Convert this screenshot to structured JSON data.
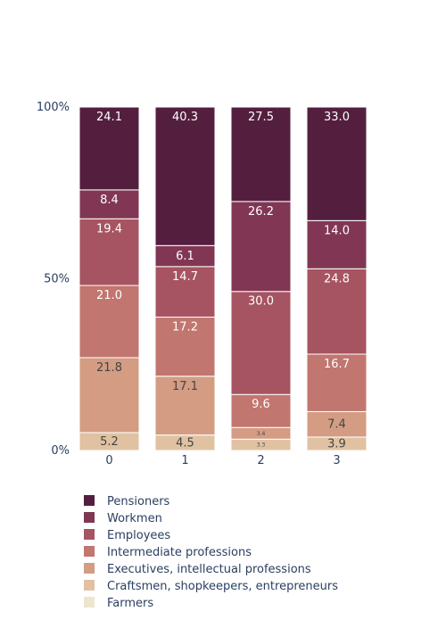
{
  "chart_data": {
    "type": "bar",
    "stacked": true,
    "normalized": true,
    "categories": [
      "0",
      "1",
      "2",
      "3"
    ],
    "y_ticks": [
      "0%",
      "50%",
      "100%"
    ],
    "ylim": [
      0,
      100
    ],
    "grid": false,
    "legend_position": "bottom",
    "series": [
      {
        "name": "Farmers",
        "color": "#ede5cf",
        "values": [
          0,
          0,
          0,
          0
        ],
        "labels": [
          "",
          "",
          "",
          ""
        ]
      },
      {
        "name": "Craftsmen, shopkeepers, entrepreneurs",
        "color": "#e0c2a2",
        "values": [
          5.2,
          4.5,
          3.3,
          3.9
        ],
        "labels": [
          "5.2",
          "4.5",
          "3.3",
          "3.9"
        ]
      },
      {
        "name": "Executives, intellectual professions",
        "color": "#d39c83",
        "values": [
          21.8,
          17.1,
          3.4,
          7.4
        ],
        "labels": [
          "21.8",
          "17.1",
          "3.4",
          "7.4"
        ]
      },
      {
        "name": "Intermediate professions",
        "color": "#c1766f",
        "values": [
          21.0,
          17.2,
          9.6,
          16.7
        ],
        "labels": [
          "21.0",
          "17.2",
          "9.6",
          "16.7"
        ]
      },
      {
        "name": "Employees",
        "color": "#a65461",
        "values": [
          19.4,
          14.7,
          30.0,
          24.8
        ],
        "labels": [
          "19.4",
          "14.7",
          "30.0",
          "24.8"
        ]
      },
      {
        "name": "Workmen",
        "color": "#813753",
        "values": [
          8.4,
          6.1,
          26.2,
          14.0
        ],
        "labels": [
          "8.4",
          "6.1",
          "26.2",
          "14.0"
        ]
      },
      {
        "name": "Pensioners",
        "color": "#541f3f",
        "values": [
          24.1,
          40.3,
          27.5,
          33.0
        ],
        "labels": [
          "24.1",
          "40.3",
          "27.5",
          "33.0"
        ]
      }
    ]
  }
}
